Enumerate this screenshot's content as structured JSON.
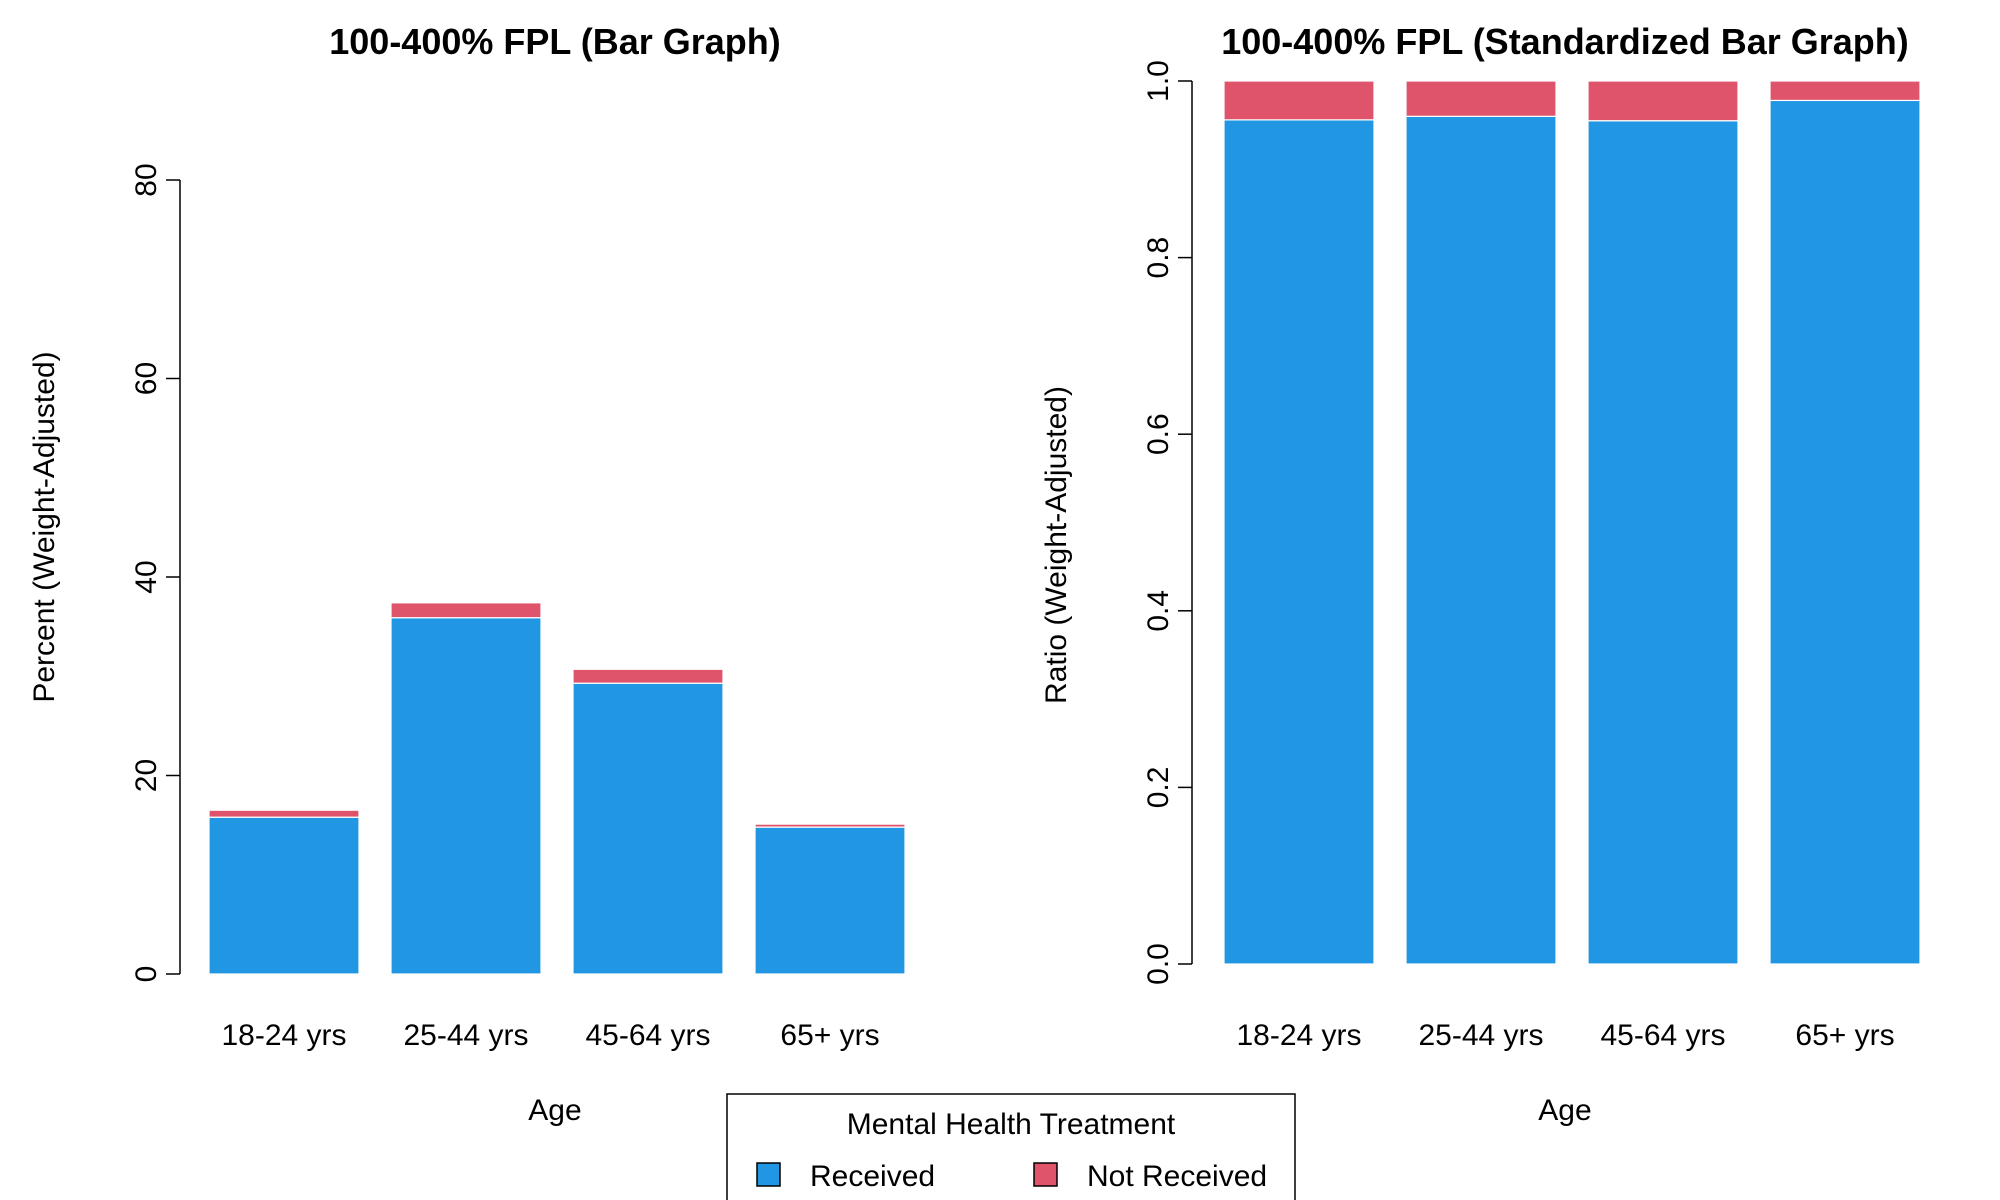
{
  "colors": {
    "received": "#2196E3",
    "not_received": "#DF536B"
  },
  "legend": {
    "title": "Mental Health Treatment",
    "items": [
      {
        "label": "Received",
        "color": "#2196E3"
      },
      {
        "label": "Not Received",
        "color": "#DF536B"
      }
    ]
  },
  "chart_data": [
    {
      "type": "bar",
      "stacked": true,
      "title": "100-400% FPL (Bar Graph)",
      "xlabel": "Age",
      "ylabel": "Percent (Weight-Adjusted)",
      "ylim": [
        0,
        80
      ],
      "yticks": [
        "0",
        "20",
        "40",
        "60",
        "80"
      ],
      "categories": [
        "18-24 yrs",
        "25-44 yrs",
        "45-64 yrs",
        "65+ yrs"
      ],
      "series": [
        {
          "name": "Received",
          "values": [
            15.8,
            35.9,
            29.3,
            14.8
          ]
        },
        {
          "name": "Not Received",
          "values": [
            0.7,
            1.5,
            1.4,
            0.3
          ]
        }
      ]
    },
    {
      "type": "bar",
      "stacked": true,
      "title": "100-400% FPL (Standardized Bar Graph)",
      "xlabel": "Age",
      "ylabel": "Ratio (Weight-Adjusted)",
      "ylim": [
        0,
        1
      ],
      "yticks": [
        "0.0",
        "0.2",
        "0.4",
        "0.6",
        "0.8",
        "1.0"
      ],
      "categories": [
        "18-24 yrs",
        "25-44 yrs",
        "45-64 yrs",
        "65+ yrs"
      ],
      "series": [
        {
          "name": "Received",
          "values": [
            0.956,
            0.96,
            0.955,
            0.978
          ]
        },
        {
          "name": "Not Received",
          "values": [
            0.044,
            0.04,
            0.045,
            0.022
          ]
        }
      ]
    }
  ]
}
